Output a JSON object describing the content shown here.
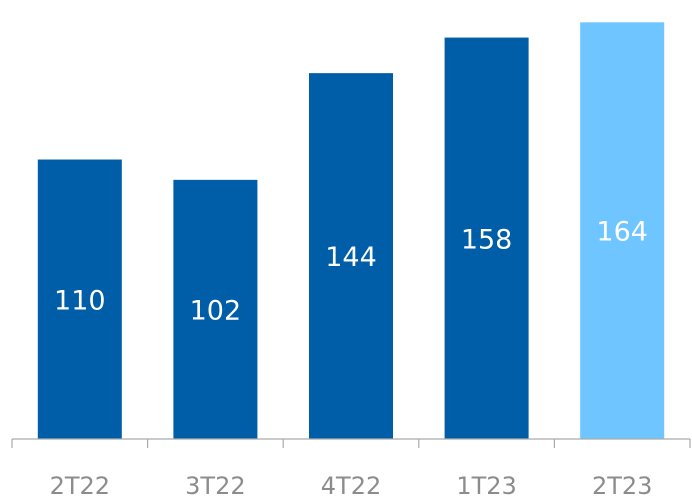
{
  "chart_data": {
    "type": "bar",
    "categories": [
      "2T22",
      "3T22",
      "4T22",
      "1T23",
      "2T23"
    ],
    "values": [
      110,
      102,
      144,
      158,
      164
    ],
    "data_labels": [
      "110",
      "102",
      "144",
      "158",
      "164"
    ],
    "highlight_index": 4,
    "ylim": [
      0,
      172
    ],
    "grid": false,
    "colors": {
      "bar": "#005EA8",
      "highlight": "#6EC5FF",
      "label": "#FFFFFF",
      "axis": "#AAAAAA",
      "tick_label": "#8C8C8C"
    }
  }
}
